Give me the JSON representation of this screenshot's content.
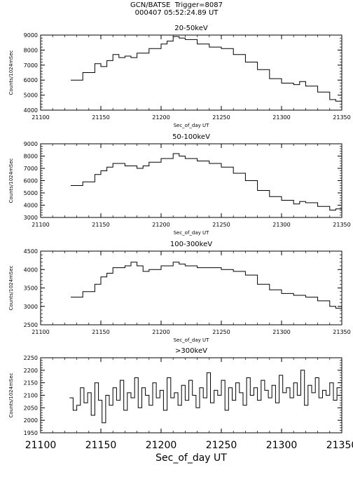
{
  "header": {
    "line1": "GCN/BATSE  Trigger=8087",
    "line2": "000407 05:52:24.89 UT"
  },
  "chart_data": [
    {
      "type": "line",
      "step": true,
      "title": "20-50keV",
      "xlabel": "Sec_of_day UT",
      "ylabel": "Counts/1024mSec",
      "xlim": [
        21100,
        21350
      ],
      "ylim": [
        4000,
        9000
      ],
      "x_ticks": [
        "21100",
        "21150",
        "21200",
        "21250",
        "21300",
        "21350"
      ],
      "y_ticks": [
        "4000",
        "5000",
        "6000",
        "7000",
        "8000",
        "9000"
      ],
      "x": [
        21125,
        21135,
        21145,
        21150,
        21155,
        21160,
        21165,
        21170,
        21175,
        21180,
        21190,
        21200,
        21205,
        21210,
        21215,
        21220,
        21230,
        21240,
        21250,
        21260,
        21270,
        21280,
        21290,
        21300,
        21310,
        21315,
        21320,
        21330,
        21340,
        21345
      ],
      "y": [
        6000,
        6500,
        7100,
        6900,
        7300,
        7700,
        7500,
        7600,
        7500,
        7800,
        8100,
        8400,
        8600,
        8900,
        8800,
        8700,
        8400,
        8200,
        8100,
        7700,
        7200,
        6700,
        6100,
        5800,
        5700,
        5900,
        5600,
        5200,
        4700,
        4600
      ]
    },
    {
      "type": "line",
      "step": true,
      "title": "50-100keV",
      "xlabel": "Sec_of_day UT",
      "ylabel": "Counts/1024mSec",
      "xlim": [
        21100,
        21350
      ],
      "ylim": [
        3000,
        9000
      ],
      "x_ticks": [
        "21100",
        "21150",
        "21200",
        "21250",
        "21300",
        "21350"
      ],
      "y_ticks": [
        "3000",
        "4000",
        "5000",
        "6000",
        "7000",
        "8000",
        "9000"
      ],
      "x": [
        21125,
        21135,
        21145,
        21150,
        21155,
        21160,
        21170,
        21180,
        21185,
        21190,
        21200,
        21210,
        21215,
        21220,
        21230,
        21240,
        21250,
        21260,
        21270,
        21280,
        21290,
        21300,
        21310,
        21315,
        21320,
        21330,
        21340,
        21345
      ],
      "y": [
        5600,
        5900,
        6500,
        6800,
        7100,
        7400,
        7200,
        7000,
        7200,
        7500,
        7800,
        8200,
        8000,
        7800,
        7600,
        7400,
        7100,
        6600,
        6000,
        5200,
        4700,
        4400,
        4100,
        4300,
        4200,
        3900,
        3600,
        3700
      ]
    },
    {
      "type": "line",
      "step": true,
      "title": "100-300keV",
      "xlabel": "Sec_of_day UT",
      "ylabel": "Counts/1024mSec",
      "xlim": [
        21100,
        21350
      ],
      "ylim": [
        2500,
        4500
      ],
      "x_ticks": [
        "21100",
        "21150",
        "21200",
        "21250",
        "21300",
        "21350"
      ],
      "y_ticks": [
        "2500",
        "3000",
        "3500",
        "4000",
        "4500"
      ],
      "x": [
        21125,
        21135,
        21145,
        21150,
        21155,
        21160,
        21170,
        21175,
        21180,
        21185,
        21190,
        21200,
        21210,
        21215,
        21220,
        21230,
        21240,
        21250,
        21260,
        21270,
        21280,
        21290,
        21300,
        21310,
        21320,
        21330,
        21340,
        21345
      ],
      "y": [
        3250,
        3400,
        3600,
        3800,
        3900,
        4050,
        4100,
        4200,
        4100,
        3950,
        4000,
        4100,
        4200,
        4150,
        4100,
        4050,
        4050,
        4000,
        3950,
        3850,
        3600,
        3450,
        3350,
        3300,
        3250,
        3150,
        3000,
        2950
      ]
    },
    {
      "type": "line",
      "step": true,
      "title": ">300keV",
      "xlabel": "Sec_of_day UT",
      "ylabel": "Counts/1024mSec",
      "xlim": [
        21100,
        21350
      ],
      "ylim": [
        1950,
        2250
      ],
      "x_ticks": [
        "21100",
        "21150",
        "21200",
        "21250",
        "21300",
        "21350"
      ],
      "y_ticks": [
        "1950",
        "2000",
        "2050",
        "2100",
        "2150",
        "2200",
        "2250"
      ],
      "x": [
        21124,
        21127,
        21130,
        21133,
        21136,
        21139,
        21142,
        21145,
        21148,
        21151,
        21154,
        21157,
        21160,
        21163,
        21166,
        21169,
        21172,
        21175,
        21178,
        21181,
        21184,
        21187,
        21190,
        21193,
        21196,
        21199,
        21202,
        21205,
        21208,
        21211,
        21214,
        21217,
        21220,
        21223,
        21226,
        21229,
        21232,
        21235,
        21238,
        21241,
        21244,
        21247,
        21250,
        21253,
        21256,
        21259,
        21262,
        21265,
        21268,
        21271,
        21274,
        21277,
        21280,
        21283,
        21286,
        21289,
        21292,
        21295,
        21298,
        21301,
        21304,
        21307,
        21310,
        21313,
        21316,
        21319,
        21322,
        21325,
        21328,
        21331,
        21334,
        21337,
        21340,
        21343,
        21346
      ],
      "y": [
        2090,
        2040,
        2060,
        2130,
        2070,
        2110,
        2020,
        2150,
        2080,
        1990,
        2100,
        2060,
        2130,
        2080,
        2160,
        2040,
        2110,
        2090,
        2170,
        2050,
        2130,
        2100,
        2060,
        2150,
        2090,
        2120,
        2040,
        2170,
        2090,
        2110,
        2060,
        2140,
        2080,
        2160,
        2100,
        2050,
        2130,
        2090,
        2190,
        2070,
        2120,
        2100,
        2160,
        2040,
        2130,
        2080,
        2150,
        2110,
        2060,
        2170,
        2100,
        2130,
        2080,
        2160,
        2120,
        2090,
        2140,
        2070,
        2180,
        2110,
        2130,
        2090,
        2150,
        2100,
        2200,
        2060,
        2140,
        2110,
        2170,
        2090,
        2120,
        2100,
        2150,
        2080,
        2130
      ]
    }
  ]
}
